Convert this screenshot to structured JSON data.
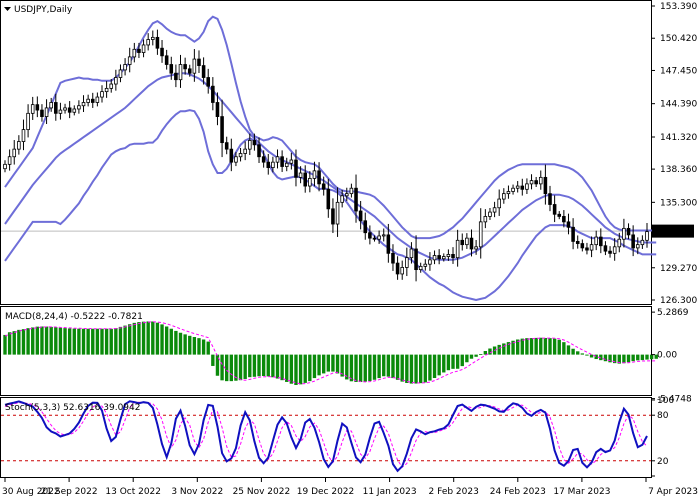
{
  "colors": {
    "candle": "#000000",
    "band": "#6e6ed8",
    "macd_bar": "#0a8a0a",
    "signal": "#ff00ff",
    "stoch_main": "#1010c0",
    "stoch_signal": "#ff00ff",
    "level_line": "#cc0000",
    "grid": "#9a9a9a",
    "price_line": "#bdbdbd",
    "current_bg": "#000000",
    "current_fg": "#ffffff"
  },
  "chart_data": [
    {
      "type": "candlestick",
      "title": "USDJPY,Daily",
      "ylim": [
        126.3,
        153.39
      ],
      "y_ticks": [
        "153.390",
        "150.420",
        "147.450",
        "144.390",
        "141.320",
        "138.360",
        "135.300",
        "132.647",
        "129.270",
        "126.300"
      ],
      "y_tick_values": [
        153.39,
        150.42,
        147.45,
        144.39,
        141.32,
        138.36,
        135.3,
        132.647,
        129.27,
        126.3
      ],
      "current_price": "132.647",
      "current_value": 132.647,
      "x_labels": [
        "30 Aug 2022",
        "21 Sep 2022",
        "13 Oct 2022",
        "3 Nov 2022",
        "25 Nov 2022",
        "19 Dec 2022",
        "11 Jan 2023",
        "2 Feb 2023",
        "24 Feb 2023",
        "17 Mar 2023",
        "7 Apr 2023"
      ],
      "close": [
        138.8,
        139.5,
        140.2,
        140.9,
        142.0,
        143.5,
        144.3,
        143.8,
        143.2,
        144.0,
        144.5,
        143.5,
        143.8,
        144.0,
        143.6,
        143.9,
        144.2,
        144.5,
        144.8,
        144.5,
        145.0,
        145.5,
        145.8,
        146.2,
        146.8,
        147.5,
        148.0,
        148.7,
        149.4,
        149.1,
        149.8,
        150.3,
        150.5,
        149.5,
        148.8,
        148.0,
        147.2,
        146.6,
        148.0,
        147.6,
        147.2,
        148.5,
        147.9,
        146.8,
        146.0,
        144.5,
        143.2,
        140.8,
        140.2,
        139.0,
        139.5,
        139.8,
        140.2,
        141.0,
        140.6,
        139.5,
        139.0,
        138.5,
        139.0,
        139.5,
        138.6,
        138.9,
        139.2,
        137.6,
        138.0,
        136.8,
        137.5,
        138.2,
        137.0,
        136.5,
        134.7,
        133.3,
        135.3,
        135.9,
        136.1,
        136.6,
        134.5,
        133.6,
        132.5,
        132.0,
        131.9,
        132.2,
        132.3,
        130.6,
        129.7,
        128.7,
        129.3,
        130.2,
        131.0,
        129.1,
        129.4,
        129.6,
        130.0,
        130.4,
        130.1,
        130.3,
        130.5,
        130.2,
        131.8,
        131.4,
        132.0,
        131.0,
        131.2,
        133.5,
        134.0,
        134.4,
        134.8,
        135.6,
        136.1,
        136.3,
        136.6,
        136.8,
        136.5,
        137.0,
        137.3,
        137.0,
        137.6,
        136.1,
        135.1,
        134.2,
        134.0,
        133.5,
        133.0,
        131.7,
        131.5,
        131.1,
        130.9,
        131.4,
        132.1,
        131.3,
        130.8,
        130.6,
        131.2,
        131.9,
        132.9,
        132.3,
        131.1,
        131.4,
        131.8,
        132.6
      ],
      "bollinger_upper": [
        136.7,
        137.3,
        137.9,
        138.5,
        139.1,
        139.7,
        140.3,
        141.3,
        142.3,
        143.3,
        144.3,
        145.3,
        146.3,
        146.5,
        146.6,
        146.7,
        146.8,
        146.7,
        146.7,
        146.6,
        146.6,
        146.5,
        146.5,
        146.5,
        146.8,
        147.2,
        147.7,
        148.2,
        148.9,
        149.7,
        150.5,
        151.2,
        151.8,
        152.0,
        151.7,
        151.3,
        151.0,
        150.8,
        150.7,
        150.7,
        150.4,
        150.1,
        150.4,
        151.0,
        152.0,
        152.4,
        152.2,
        151.2,
        149.8,
        148.1,
        146.3,
        144.6,
        143.2,
        142.0,
        141.4,
        141.2,
        141.0,
        141.1,
        141.3,
        141.2,
        141.0,
        140.5,
        140.0,
        139.5,
        139.2,
        139.0,
        138.9,
        138.8,
        138.5,
        138.0,
        137.5,
        137.0,
        136.6,
        136.4,
        136.3,
        136.3,
        136.3,
        136.2,
        136.1,
        136.0,
        135.8,
        135.4,
        135.0,
        134.5,
        134.0,
        133.5,
        133.0,
        132.6,
        132.2,
        132.0,
        132.0,
        132.0,
        132.0,
        132.1,
        132.2,
        132.4,
        132.7,
        133.0,
        133.4,
        133.8,
        134.3,
        134.8,
        135.3,
        135.8,
        136.3,
        136.8,
        137.3,
        137.7,
        138.0,
        138.3,
        138.5,
        138.7,
        138.8,
        138.8,
        138.8,
        138.8,
        138.8,
        138.8,
        138.8,
        138.8,
        138.7,
        138.6,
        138.5,
        138.3,
        138.0,
        137.6,
        137.0,
        136.4,
        135.6,
        134.8,
        134.0,
        133.4,
        133.0,
        132.8,
        132.7,
        132.7,
        132.7,
        132.7,
        132.7,
        132.7,
        132.7,
        132.7
      ],
      "bollinger_middle": [
        133.3,
        133.9,
        134.5,
        135.1,
        135.7,
        136.3,
        136.9,
        137.4,
        137.9,
        138.4,
        138.9,
        139.4,
        139.8,
        140.1,
        140.4,
        140.7,
        141.0,
        141.3,
        141.6,
        141.9,
        142.2,
        142.5,
        142.8,
        143.1,
        143.4,
        143.7,
        144.0,
        144.4,
        144.8,
        145.2,
        145.6,
        146.0,
        146.3,
        146.6,
        146.8,
        146.9,
        147.0,
        147.1,
        147.2,
        147.2,
        147.1,
        146.9,
        146.7,
        146.4,
        146.0,
        145.6,
        145.1,
        144.6,
        144.1,
        143.6,
        143.1,
        142.6,
        142.1,
        141.6,
        141.2,
        140.8,
        140.4,
        140.0,
        139.7,
        139.4,
        139.2,
        139.0,
        138.8,
        138.6,
        138.4,
        138.2,
        138.0,
        137.8,
        137.5,
        137.3,
        137.0,
        136.7,
        136.4,
        136.1,
        135.8,
        135.5,
        135.2,
        134.9,
        134.6,
        134.3,
        134.0,
        133.6,
        133.2,
        132.8,
        132.4,
        132.0,
        131.7,
        131.4,
        131.1,
        130.8,
        130.6,
        130.4,
        130.2,
        130.1,
        130.0,
        130.0,
        130.0,
        130.0,
        130.1,
        130.2,
        130.4,
        130.6,
        130.8,
        131.1,
        131.4,
        131.8,
        132.2,
        132.6,
        133.0,
        133.4,
        133.8,
        134.2,
        134.6,
        134.9,
        135.2,
        135.5,
        135.7,
        135.9,
        136.0,
        136.0,
        136.0,
        135.9,
        135.8,
        135.6,
        135.3,
        135.0,
        134.6,
        134.2,
        133.8,
        133.4,
        133.0,
        132.7,
        132.4,
        132.2,
        132.0,
        131.9,
        131.8,
        131.7,
        131.6,
        131.6,
        131.6,
        131.6
      ],
      "bollinger_lower": [
        129.9,
        130.5,
        131.1,
        131.7,
        132.3,
        132.9,
        133.5,
        133.5,
        133.5,
        133.5,
        133.5,
        133.5,
        133.3,
        133.7,
        134.2,
        134.7,
        135.2,
        135.9,
        136.5,
        137.2,
        137.8,
        138.5,
        139.1,
        139.7,
        140.0,
        140.2,
        140.3,
        140.6,
        140.7,
        140.7,
        140.7,
        140.8,
        140.8,
        141.2,
        141.9,
        142.5,
        143.0,
        143.4,
        143.7,
        143.7,
        143.8,
        143.7,
        143.0,
        141.8,
        140.0,
        138.8,
        138.0,
        138.0,
        138.4,
        139.1,
        139.9,
        140.6,
        141.0,
        141.2,
        141.0,
        140.4,
        139.8,
        138.9,
        138.1,
        137.6,
        137.4,
        137.5,
        137.6,
        137.7,
        137.6,
        137.4,
        137.1,
        136.8,
        136.5,
        136.6,
        136.5,
        136.4,
        136.2,
        135.8,
        135.3,
        134.7,
        134.1,
        133.6,
        133.1,
        132.6,
        132.2,
        131.8,
        131.4,
        131.1,
        130.8,
        130.5,
        130.4,
        130.2,
        130.0,
        129.6,
        129.2,
        128.8,
        128.4,
        128.1,
        127.8,
        127.6,
        127.3,
        127.0,
        126.8,
        126.6,
        126.5,
        126.4,
        126.3,
        126.4,
        126.5,
        126.8,
        127.1,
        127.5,
        128.0,
        128.5,
        129.1,
        129.7,
        130.4,
        131.0,
        131.6,
        132.2,
        132.6,
        133.0,
        133.2,
        133.2,
        133.2,
        133.2,
        133.1,
        132.9,
        132.6,
        132.4,
        132.2,
        132.0,
        132.0,
        132.0,
        132.0,
        132.0,
        131.8,
        131.6,
        131.3,
        131.1,
        130.9,
        130.7,
        130.5,
        130.5,
        130.5,
        130.5
      ]
    },
    {
      "type": "bar",
      "title": "MACD(8,24,4) -0.5222 -0.7821",
      "ylim": [
        -4.9,
        5.8
      ],
      "y_ticks": [
        "5.2869",
        "0.00",
        "-5.4748"
      ],
      "y_tick_values": [
        5.2869,
        0,
        -5.4748
      ],
      "values": [
        2.45,
        2.78,
        2.92,
        3.08,
        3.17,
        3.29,
        3.38,
        3.48,
        3.5,
        3.49,
        3.45,
        3.4,
        3.34,
        3.3,
        3.25,
        3.24,
        3.23,
        3.22,
        3.22,
        3.22,
        3.22,
        3.22,
        3.22,
        3.21,
        3.3,
        3.45,
        3.61,
        3.78,
        3.95,
        4.05,
        4.1,
        4.13,
        4.12,
        3.97,
        3.76,
        3.5,
        3.22,
        2.95,
        2.72,
        2.52,
        2.34,
        2.19,
        2.05,
        1.88,
        1.62,
        -1.41,
        -2.63,
        -3.2,
        -3.3,
        -3.3,
        -3.25,
        -3.18,
        -3.03,
        -2.81,
        -2.76,
        -2.69,
        -2.66,
        -2.71,
        -2.82,
        -2.98,
        -3.18,
        -3.4,
        -3.62,
        -3.78,
        -3.7,
        -3.52,
        -3.3,
        -2.92,
        -2.58,
        -2.34,
        -2.11,
        -2.11,
        -2.34,
        -2.73,
        -3.09,
        -3.32,
        -3.4,
        -3.41,
        -3.36,
        -3.28,
        -3.13,
        -2.92,
        -2.69,
        -2.74,
        -2.92,
        -3.14,
        -3.36,
        -3.53,
        -3.6,
        -3.6,
        -3.55,
        -3.46,
        -3.23,
        -2.91,
        -2.58,
        -2.22,
        -1.94,
        -1.77,
        -1.76,
        -1.43,
        -0.95,
        -0.51,
        -0.27,
        0.07,
        0.45,
        0.76,
        1.01,
        1.21,
        1.39,
        1.56,
        1.73,
        1.88,
        1.99,
        2.05,
        2.06,
        2.08,
        2.1,
        2.07,
        2.05,
        1.99,
        1.85,
        1.55,
        1.15,
        0.73,
        0.41,
        0.15,
        -0.12,
        -0.36,
        -0.55,
        -0.69,
        -0.82,
        -0.96,
        -1.06,
        -1.12,
        -1.07,
        -0.95,
        -0.81,
        -0.71,
        -0.68,
        -0.62,
        -0.57,
        -0.52
      ],
      "signal": [
        2.3,
        2.55,
        2.75,
        2.92,
        3.05,
        3.16,
        3.26,
        3.35,
        3.42,
        3.45,
        3.45,
        3.43,
        3.39,
        3.36,
        3.32,
        3.29,
        3.27,
        3.25,
        3.24,
        3.23,
        3.23,
        3.22,
        3.22,
        3.22,
        3.24,
        3.33,
        3.45,
        3.59,
        3.74,
        3.87,
        3.97,
        4.05,
        4.08,
        4.06,
        3.97,
        3.84,
        3.65,
        3.43,
        3.21,
        3.0,
        2.8,
        2.62,
        2.45,
        2.29,
        2.1,
        1.0,
        -0.2,
        -1.2,
        -1.95,
        -2.45,
        -2.85,
        -3.1,
        -3.18,
        -3.08,
        -2.93,
        -2.82,
        -2.76,
        -2.74,
        -2.76,
        -2.83,
        -2.97,
        -3.14,
        -3.33,
        -3.52,
        -3.63,
        -3.6,
        -3.5,
        -3.3,
        -3.02,
        -2.78,
        -2.55,
        -2.3,
        -2.2,
        -2.4,
        -2.7,
        -3.0,
        -3.23,
        -3.35,
        -3.39,
        -3.36,
        -3.28,
        -3.12,
        -2.95,
        -2.82,
        -2.85,
        -2.97,
        -3.15,
        -3.33,
        -3.46,
        -3.52,
        -3.53,
        -3.5,
        -3.42,
        -3.23,
        -2.98,
        -2.7,
        -2.42,
        -2.2,
        -2.05,
        -1.85,
        -1.55,
        -1.15,
        -0.8,
        -0.45,
        -0.1,
        0.22,
        0.52,
        0.8,
        1.05,
        1.28,
        1.47,
        1.63,
        1.78,
        1.9,
        1.98,
        2.02,
        2.05,
        2.06,
        2.06,
        2.04,
        1.98,
        1.82,
        1.55,
        1.22,
        0.9,
        0.6,
        0.3,
        0.02,
        -0.22,
        -0.42,
        -0.6,
        -0.75,
        -0.88,
        -0.98,
        -1.02,
        -1.0,
        -0.93,
        -0.85,
        -0.8,
        -0.78,
        -0.78,
        -0.78
      ]
    },
    {
      "type": "line",
      "title": "Stoch(5,3,3) 52.6316 39.0942",
      "ylim": [
        0,
        100
      ],
      "y_ticks": [
        "100",
        "80",
        "20",
        "0"
      ],
      "y_tick_values": [
        100,
        80,
        20,
        0
      ],
      "levels": [
        80,
        20
      ],
      "series": [
        {
          "values": [
            93.7,
            95.2,
            96.6,
            98.1,
            96.1,
            93.7,
            91.3,
            84.5,
            76.5,
            64.1,
            58.6,
            56.0,
            52.0,
            53.8,
            56.1,
            62.0,
            70.3,
            82.2,
            92.3,
            96.4,
            96.2,
            86.0,
            62.4,
            46.0,
            51.4,
            74.6,
            94.5,
            98.3,
            97.3,
            95.8,
            97.1,
            96.2,
            89.8,
            67.8,
            42.1,
            24.8,
            43.0,
            75.4,
            86.1,
            66.1,
            40.4,
            28.8,
            42.1,
            73.3,
            93.5,
            92.2,
            65.0,
            30.0,
            19.2,
            23.0,
            36.5,
            66.4,
            84.0,
            73.2,
            45.7,
            23.9,
            16.8,
            24.4,
            46.2,
            67.5,
            77.1,
            69.5,
            50.8,
            36.8,
            48.5,
            70.2,
            75.0,
            63.4,
            44.6,
            22.3,
            11.8,
            19.5,
            46.3,
            68.9,
            64.0,
            43.6,
            24.3,
            18.1,
            28.3,
            50.4,
            69.1,
            71.3,
            56.6,
            39.8,
            15.5,
            6.9,
            12.7,
            29.3,
            49.8,
            61.3,
            58.7,
            54.9,
            57.6,
            58.8,
            61.0,
            62.8,
            67.9,
            80.3,
            92.1,
            93.9,
            89.8,
            85.6,
            90.9,
            93.8,
            93.1,
            90.9,
            88.5,
            85.0,
            84.5,
            90.9,
            95.6,
            94.2,
            89.8,
            82.2,
            79.2,
            84.2,
            87.0,
            83.3,
            62.0,
            33.6,
            17.3,
            13.5,
            19.8,
            34.2,
            35.6,
            17.5,
            11.4,
            17.8,
            31.3,
            35.7,
            31.4,
            33.6,
            46.7,
            71.1,
            88.6,
            80.8,
            56.6,
            37.9,
            41.0,
            52.6
          ]
        },
        {
          "values": [
            91.5,
            93.5,
            95.1,
            96.4,
            96.2,
            95.4,
            94.1,
            90.9,
            84.4,
            75.4,
            66.9,
            59.7,
            55.6,
            54.0,
            54.5,
            57.4,
            63.3,
            72.2,
            82.5,
            90.6,
            94.6,
            91.9,
            82.2,
            66.5,
            54.0,
            58.2,
            73.8,
            89.8,
            96.8,
            97.1,
            96.6,
            96.2,
            95.0,
            88.2,
            73.7,
            52.0,
            37.1,
            47.4,
            68.6,
            76.5,
            67.1,
            45.9,
            37.3,
            48.5,
            70.7,
            87.2,
            84.3,
            63.7,
            38.8,
            24.7,
            26.3,
            42.3,
            62.6,
            74.2,
            68.4,
            47.9,
            29.5,
            21.8,
            29.4,
            46.1,
            63.6,
            71.6,
            66.2,
            52.7,
            45.4,
            51.9,
            64.6,
            69.6,
            61.1,
            43.5,
            26.1,
            17.9,
            25.9,
            44.9,
            60.0,
            59.1,
            44.0,
            28.7,
            23.3,
            32.3,
            49.3,
            63.6,
            65.7,
            56.0,
            37.3,
            20.8,
            11.7,
            16.3,
            30.6,
            46.8,
            56.7,
            58.3,
            57.1,
            57.1,
            59.1,
            61.0,
            63.9,
            70.3,
            80.1,
            88.8,
            91.9,
            89.8,
            88.8,
            90.1,
            92.6,
            92.6,
            90.8,
            88.1,
            86.1,
            86.8,
            90.3,
            93.6,
            93.2,
            88.7,
            83.7,
            81.9,
            83.5,
            84.8,
            77.4,
            59.6,
            37.6,
            21.5,
            16.9,
            22.5,
            29.9,
            29.1,
            21.5,
            15.6,
            20.2,
            28.3,
            32.8,
            33.6,
            37.2,
            50.5,
            68.8,
            80.2,
            75.3,
            58.4,
            45.2,
            39.1
          ]
        }
      ]
    }
  ]
}
